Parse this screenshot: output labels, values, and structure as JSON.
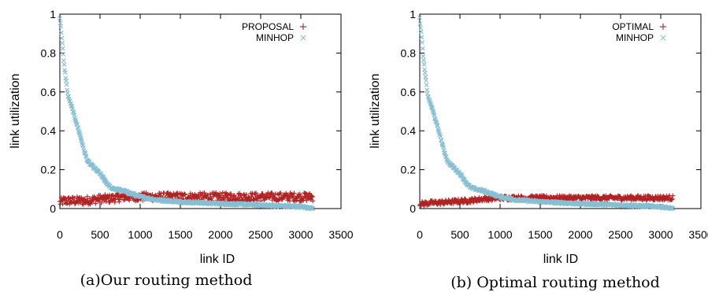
{
  "chart_data": [
    {
      "type": "scatter",
      "caption": "(a)Our routing method",
      "xlabel": "link ID",
      "ylabel": "link utilization",
      "xlim": [
        0,
        3500
      ],
      "ylim": [
        0,
        1
      ],
      "xticks": [
        "0",
        "500",
        "1000",
        "1500",
        "2000",
        "2500",
        "3000",
        "3500"
      ],
      "yticks": [
        "0",
        "0.2",
        "0.4",
        "0.6",
        "0.8",
        "1"
      ],
      "legend_position": "top-right",
      "series": [
        {
          "name": "PROPOSAL",
          "marker": "+",
          "color": "#b22222",
          "x": [
            0,
            50,
            100,
            200,
            300,
            400,
            500,
            600,
            700,
            800,
            900,
            1000,
            1500,
            2000,
            2500,
            3000,
            3150
          ],
          "y": [
            0.03,
            0.04,
            0.04,
            0.04,
            0.04,
            0.045,
            0.05,
            0.05,
            0.055,
            0.06,
            0.06,
            0.06,
            0.06,
            0.06,
            0.06,
            0.06,
            0.06
          ]
        },
        {
          "name": "MINHOP",
          "marker": "x",
          "color": "#87bfd3",
          "x": [
            0,
            20,
            50,
            100,
            150,
            200,
            250,
            300,
            350,
            400,
            450,
            500,
            550,
            600,
            650,
            700,
            800,
            900,
            1000,
            1200,
            1500,
            2000,
            2500,
            3000,
            3150
          ],
          "y": [
            0.98,
            0.9,
            0.75,
            0.58,
            0.52,
            0.45,
            0.38,
            0.3,
            0.24,
            0.22,
            0.2,
            0.18,
            0.15,
            0.12,
            0.105,
            0.1,
            0.09,
            0.075,
            0.06,
            0.045,
            0.035,
            0.025,
            0.018,
            0.01,
            0.0
          ]
        }
      ]
    },
    {
      "type": "scatter",
      "caption": "(b) Optimal routing method",
      "xlabel": "link ID",
      "ylabel": "link utilization",
      "xlim": [
        0,
        3500
      ],
      "ylim": [
        0,
        1
      ],
      "xticks": [
        "0",
        "500",
        "1000",
        "1500",
        "2000",
        "2500",
        "3000",
        "3500"
      ],
      "yticks": [
        "0",
        "0.2",
        "0.4",
        "0.6",
        "0.8",
        "1"
      ],
      "legend_position": "top-right",
      "series": [
        {
          "name": "OPTIMAL",
          "marker": "+",
          "color": "#b22222",
          "x": [
            0,
            50,
            100,
            200,
            300,
            400,
            500,
            600,
            700,
            800,
            900,
            1000,
            1500,
            2000,
            2500,
            3000,
            3150
          ],
          "y": [
            0.025,
            0.025,
            0.028,
            0.03,
            0.032,
            0.035,
            0.038,
            0.04,
            0.045,
            0.05,
            0.052,
            0.055,
            0.055,
            0.055,
            0.055,
            0.055,
            0.055
          ]
        },
        {
          "name": "MINHOP",
          "marker": "x",
          "color": "#87bfd3",
          "x": [
            0,
            20,
            50,
            100,
            150,
            200,
            250,
            300,
            350,
            400,
            450,
            500,
            550,
            600,
            650,
            700,
            800,
            900,
            1000,
            1200,
            1500,
            2000,
            2500,
            3000,
            3150
          ],
          "y": [
            0.98,
            0.9,
            0.75,
            0.58,
            0.52,
            0.45,
            0.38,
            0.3,
            0.24,
            0.22,
            0.2,
            0.18,
            0.15,
            0.12,
            0.105,
            0.1,
            0.09,
            0.075,
            0.06,
            0.045,
            0.035,
            0.025,
            0.018,
            0.01,
            0.0
          ]
        }
      ]
    }
  ]
}
